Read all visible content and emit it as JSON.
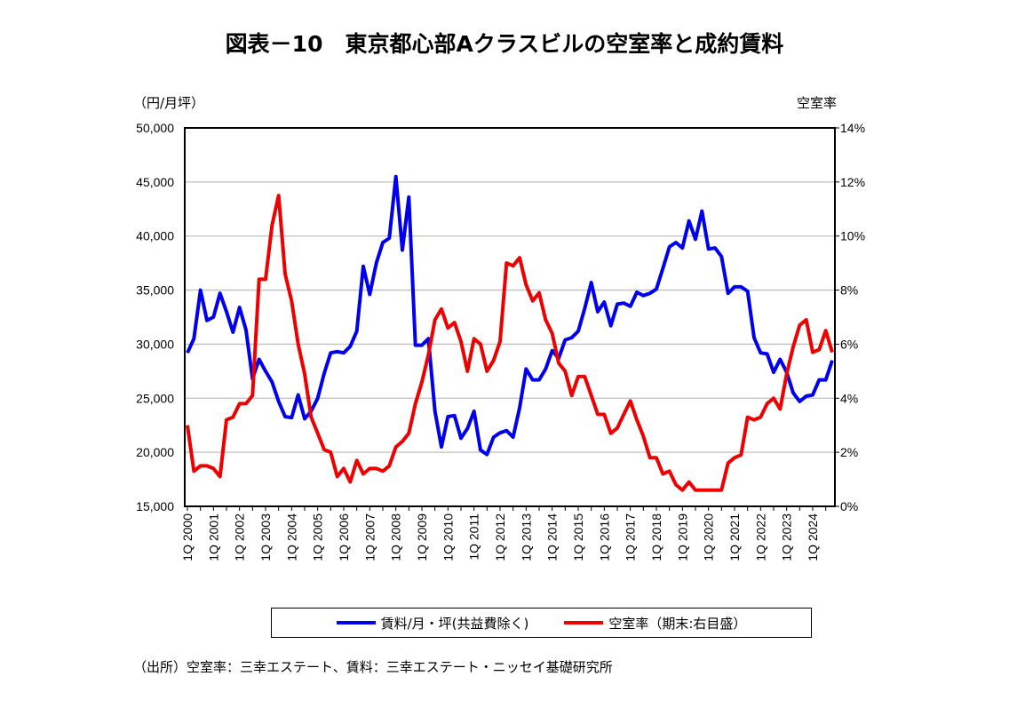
{
  "chart_data": {
    "type": "line",
    "title": "図表－10　東京都心部Aクラスビルの空室率と成約賃料",
    "ylabel_left": "（円/月坪）",
    "ylabel_right": "空室率",
    "ylim_left": [
      15000,
      50000
    ],
    "yticks_left": [
      "15,000",
      "20,000",
      "25,000",
      "30,000",
      "35,000",
      "40,000",
      "45,000",
      "50,000"
    ],
    "ylim_right": [
      0,
      14
    ],
    "yticks_right": [
      "0%",
      "2%",
      "4%",
      "6%",
      "8%",
      "10%",
      "12%",
      "14%"
    ],
    "grid": true,
    "legend_placement": "bottom",
    "x_tick_labels": [
      "1Q 2000",
      "1Q 2001",
      "1Q 2002",
      "1Q 2003",
      "1Q 2004",
      "1Q 2005",
      "1Q 2006",
      "1Q 2007",
      "1Q 2008",
      "1Q 2009",
      "1Q 2010",
      "1Q 2011",
      "1Q 2012",
      "1Q 2013",
      "1Q 2014",
      "1Q 2015",
      "1Q 2016",
      "1Q 2017",
      "1Q 2018",
      "1Q 2019",
      "1Q 2020",
      "1Q 2021",
      "1Q 2022",
      "1Q 2023",
      "1Q 2024"
    ],
    "x_range": [
      "1Q 2000",
      "4Q 2024"
    ],
    "series": [
      {
        "name": "賃料/月・坪(共益費除く)",
        "axis": "left",
        "color": "#0000ee",
        "values": [
          29200,
          30500,
          35000,
          32200,
          32500,
          34700,
          33000,
          31100,
          33400,
          31300,
          26800,
          28600,
          27500,
          26500,
          24700,
          23300,
          23200,
          25300,
          23100,
          23800,
          25000,
          27300,
          29200,
          29300,
          29200,
          29800,
          31200,
          37200,
          34600,
          37500,
          39400,
          39800,
          45500,
          38700,
          43600,
          29900,
          29900,
          30500,
          23800,
          20500,
          23300,
          23400,
          21300,
          22200,
          23800,
          20200,
          19800,
          21400,
          21800,
          22000,
          21400,
          24100,
          27700,
          26700,
          26700,
          27700,
          29400,
          28700,
          30400,
          30600,
          31200,
          33300,
          35700,
          33000,
          33900,
          31700,
          33700,
          33800,
          33500,
          34800,
          34500,
          34700,
          35100,
          37000,
          39000,
          39400,
          38900,
          41400,
          39700,
          42300,
          38800,
          38900,
          38100,
          34700,
          35300,
          35300,
          34900,
          30600,
          29200,
          29100,
          27400,
          28600,
          27400,
          25500,
          24700,
          25200,
          25300,
          26700,
          26700,
          28500
        ]
      },
      {
        "name": "空室率（期末:右目盛）",
        "axis": "right",
        "color": "#ee0000",
        "values": [
          3.0,
          1.3,
          1.5,
          1.5,
          1.4,
          1.1,
          3.2,
          3.3,
          3.8,
          3.8,
          4.1,
          8.4,
          8.4,
          10.4,
          11.5,
          8.6,
          7.6,
          6.0,
          4.9,
          3.3,
          2.7,
          2.1,
          2.0,
          1.1,
          1.4,
          0.9,
          1.7,
          1.2,
          1.4,
          1.4,
          1.3,
          1.5,
          2.2,
          2.4,
          2.7,
          3.8,
          4.6,
          5.6,
          6.9,
          7.3,
          6.6,
          6.8,
          6.1,
          5.0,
          6.2,
          6.0,
          5.0,
          5.4,
          6.1,
          9.0,
          8.9,
          9.2,
          8.2,
          7.6,
          7.9,
          6.9,
          6.4,
          5.3,
          5.0,
          4.1,
          4.8,
          4.8,
          4.1,
          3.4,
          3.4,
          2.7,
          2.9,
          3.4,
          3.9,
          3.2,
          2.6,
          1.8,
          1.8,
          1.2,
          1.3,
          0.8,
          0.6,
          0.9,
          0.6,
          0.6,
          0.6,
          0.6,
          0.6,
          1.6,
          1.8,
          1.9,
          3.3,
          3.2,
          3.3,
          3.8,
          4.0,
          3.6,
          4.9,
          5.9,
          6.7,
          6.9,
          5.7,
          5.8,
          6.5,
          5.7
        ]
      }
    ]
  },
  "source": "（出所）空室率：三幸エステート、賃料：三幸エステート・ニッセイ基礎研究所"
}
